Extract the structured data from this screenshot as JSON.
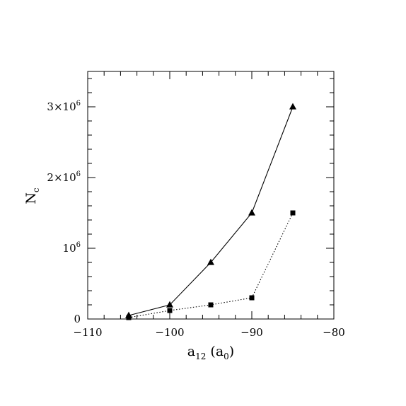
{
  "chart_data": {
    "type": "line",
    "title": "",
    "xlabel": {
      "base": "a",
      "sub": "12",
      "unit_base": "a",
      "unit_sub": "0"
    },
    "ylabel": {
      "base": "N",
      "sub": "c"
    },
    "xlim": [
      -110,
      -80
    ],
    "ylim": [
      0,
      3500000
    ],
    "x_ticks": [
      {
        "value": -110,
        "label": "−110"
      },
      {
        "value": -100,
        "label": "−100"
      },
      {
        "value": -90,
        "label": "−90"
      },
      {
        "value": -80,
        "label": "−80"
      }
    ],
    "y_ticks": [
      {
        "value": 0,
        "label": "0",
        "exp": ""
      },
      {
        "value": 1000000,
        "label": "10",
        "exp": "6"
      },
      {
        "value": 2000000,
        "label": "2×10",
        "exp": "6"
      },
      {
        "value": 3000000,
        "label": "3×10",
        "exp": "6"
      }
    ],
    "series": [
      {
        "marker": "triangle",
        "line": "solid",
        "color": "#000000",
        "x": [
          -105,
          -100,
          -95,
          -90,
          -85
        ],
        "y": [
          50000,
          200000,
          800000,
          1500000,
          3000000
        ]
      },
      {
        "marker": "square",
        "line": "dotted",
        "color": "#000000",
        "x": [
          -105,
          -100,
          -95,
          -90,
          -85
        ],
        "y": [
          20000,
          120000,
          200000,
          300000,
          1500000
        ]
      }
    ]
  }
}
